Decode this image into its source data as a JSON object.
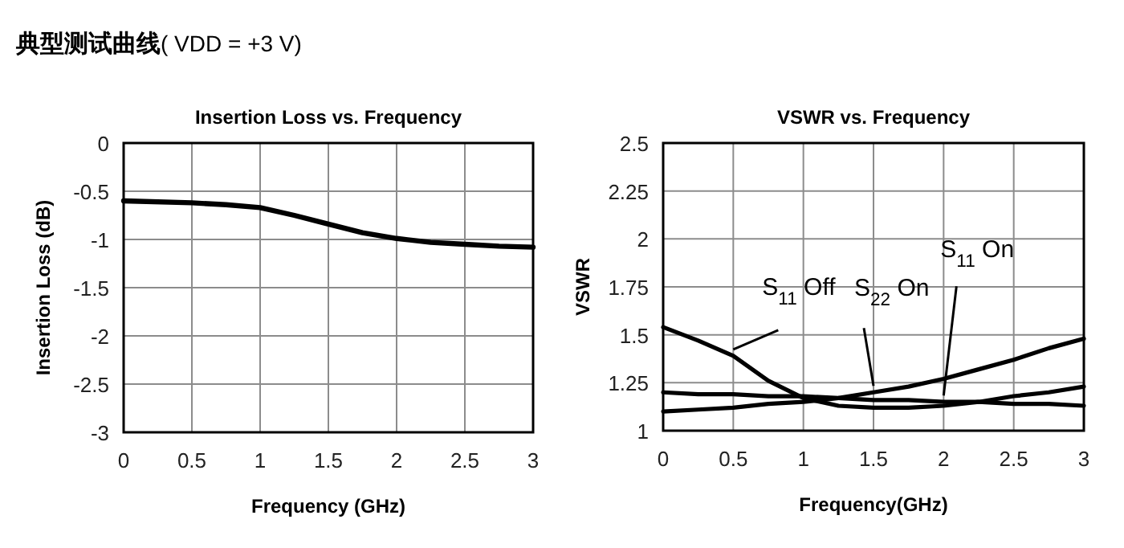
{
  "chart_data": [
    {
      "type": "other",
      "title": "典型测试曲线( VDD = +3 V)"
    },
    {
      "type": "line",
      "title": "Insertion Loss vs. Frequency",
      "xlabel": "Frequency (GHz)",
      "ylabel": "Insertion Loss (dB)",
      "xlim": [
        0,
        3
      ],
      "ylim": [
        -3,
        0
      ],
      "xticks": [
        0,
        0.5,
        1,
        1.5,
        2,
        2.5,
        3
      ],
      "yticks": [
        0,
        -0.5,
        -1,
        -1.5,
        -2,
        -2.5,
        -3
      ],
      "grid": true,
      "color": "#000000",
      "x": [
        0,
        0.5,
        0.75,
        1,
        1.25,
        1.5,
        1.75,
        2,
        2.25,
        2.5,
        2.75,
        3
      ],
      "values": [
        -0.6,
        -0.62,
        -0.64,
        -0.67,
        -0.75,
        -0.84,
        -0.93,
        -0.99,
        -1.03,
        -1.05,
        -1.07,
        -1.08
      ]
    },
    {
      "type": "line",
      "title": "VSWR vs. Frequency",
      "xlabel": "Frequency(GHz)",
      "ylabel": "VSWR",
      "xlim": [
        0,
        3
      ],
      "ylim": [
        1,
        2.5
      ],
      "xticks": [
        0,
        0.5,
        1,
        1.5,
        2,
        2.5,
        3
      ],
      "yticks": [
        1,
        1.25,
        1.5,
        1.75,
        2,
        2.25,
        2.5
      ],
      "grid": true,
      "x": [
        0,
        0.25,
        0.5,
        0.75,
        1,
        1.25,
        1.5,
        1.75,
        2,
        2.25,
        2.5,
        2.75,
        3
      ],
      "series": [
        {
          "name": "S$_{11}$ Off",
          "color": "#000000",
          "values": [
            1.54,
            1.47,
            1.39,
            1.26,
            1.17,
            1.13,
            1.12,
            1.12,
            1.13,
            1.15,
            1.18,
            1.2,
            1.23
          ]
        },
        {
          "name": "S$_{22}$ On",
          "color": "#000000",
          "values": [
            1.1,
            1.11,
            1.12,
            1.14,
            1.15,
            1.17,
            1.2,
            1.23,
            1.27,
            1.32,
            1.37,
            1.43,
            1.48
          ]
        },
        {
          "name": "S$_{11}$ On",
          "color": "#000000",
          "values": [
            1.2,
            1.19,
            1.19,
            1.18,
            1.18,
            1.17,
            1.16,
            1.16,
            1.15,
            1.15,
            1.14,
            1.14,
            1.13
          ]
        }
      ]
    }
  ]
}
